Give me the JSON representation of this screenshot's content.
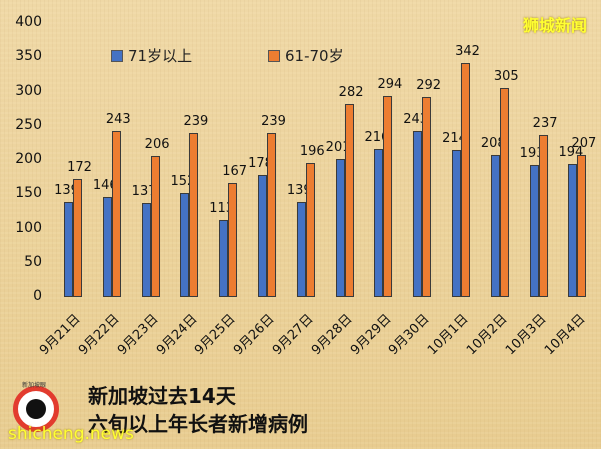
{
  "brand": "狮城新闻",
  "title_lines": [
    "新加坡过去14天",
    "六旬以上年长者新增病例"
  ],
  "watermark": "shicheng.news",
  "logo_text": "新加坡眼",
  "colors": {
    "series1": "#4472c4",
    "series2": "#ed7d31",
    "background": "#ecd39c",
    "brand": "#ffff33"
  },
  "chart_data": {
    "type": "bar",
    "title": "新加坡过去14天 六旬以上年长者新增病例",
    "xlabel": "",
    "ylabel": "",
    "ylim": [
      0,
      400
    ],
    "yticks": [
      0,
      50,
      100,
      150,
      200,
      250,
      300,
      350,
      400
    ],
    "grid": false,
    "legend_position": "top",
    "categories": [
      "9月21日",
      "9月22日",
      "9月23日",
      "9月24日",
      "9月25日",
      "9月26日",
      "9月27日",
      "9月28日",
      "9月29日",
      "9月30日",
      "10月1日",
      "10月2日",
      "10月3日",
      "10月4日"
    ],
    "series": [
      {
        "name": "71岁以上",
        "color": "#4472c4",
        "values": [
          139,
          146,
          137,
          152,
          113,
          178,
          139,
          201,
          216,
          243,
          214,
          208,
          193,
          194
        ]
      },
      {
        "name": "61-70岁",
        "color": "#ed7d31",
        "values": [
          172,
          243,
          206,
          239,
          167,
          239,
          196,
          282,
          294,
          292,
          342,
          305,
          237,
          207
        ]
      }
    ]
  }
}
